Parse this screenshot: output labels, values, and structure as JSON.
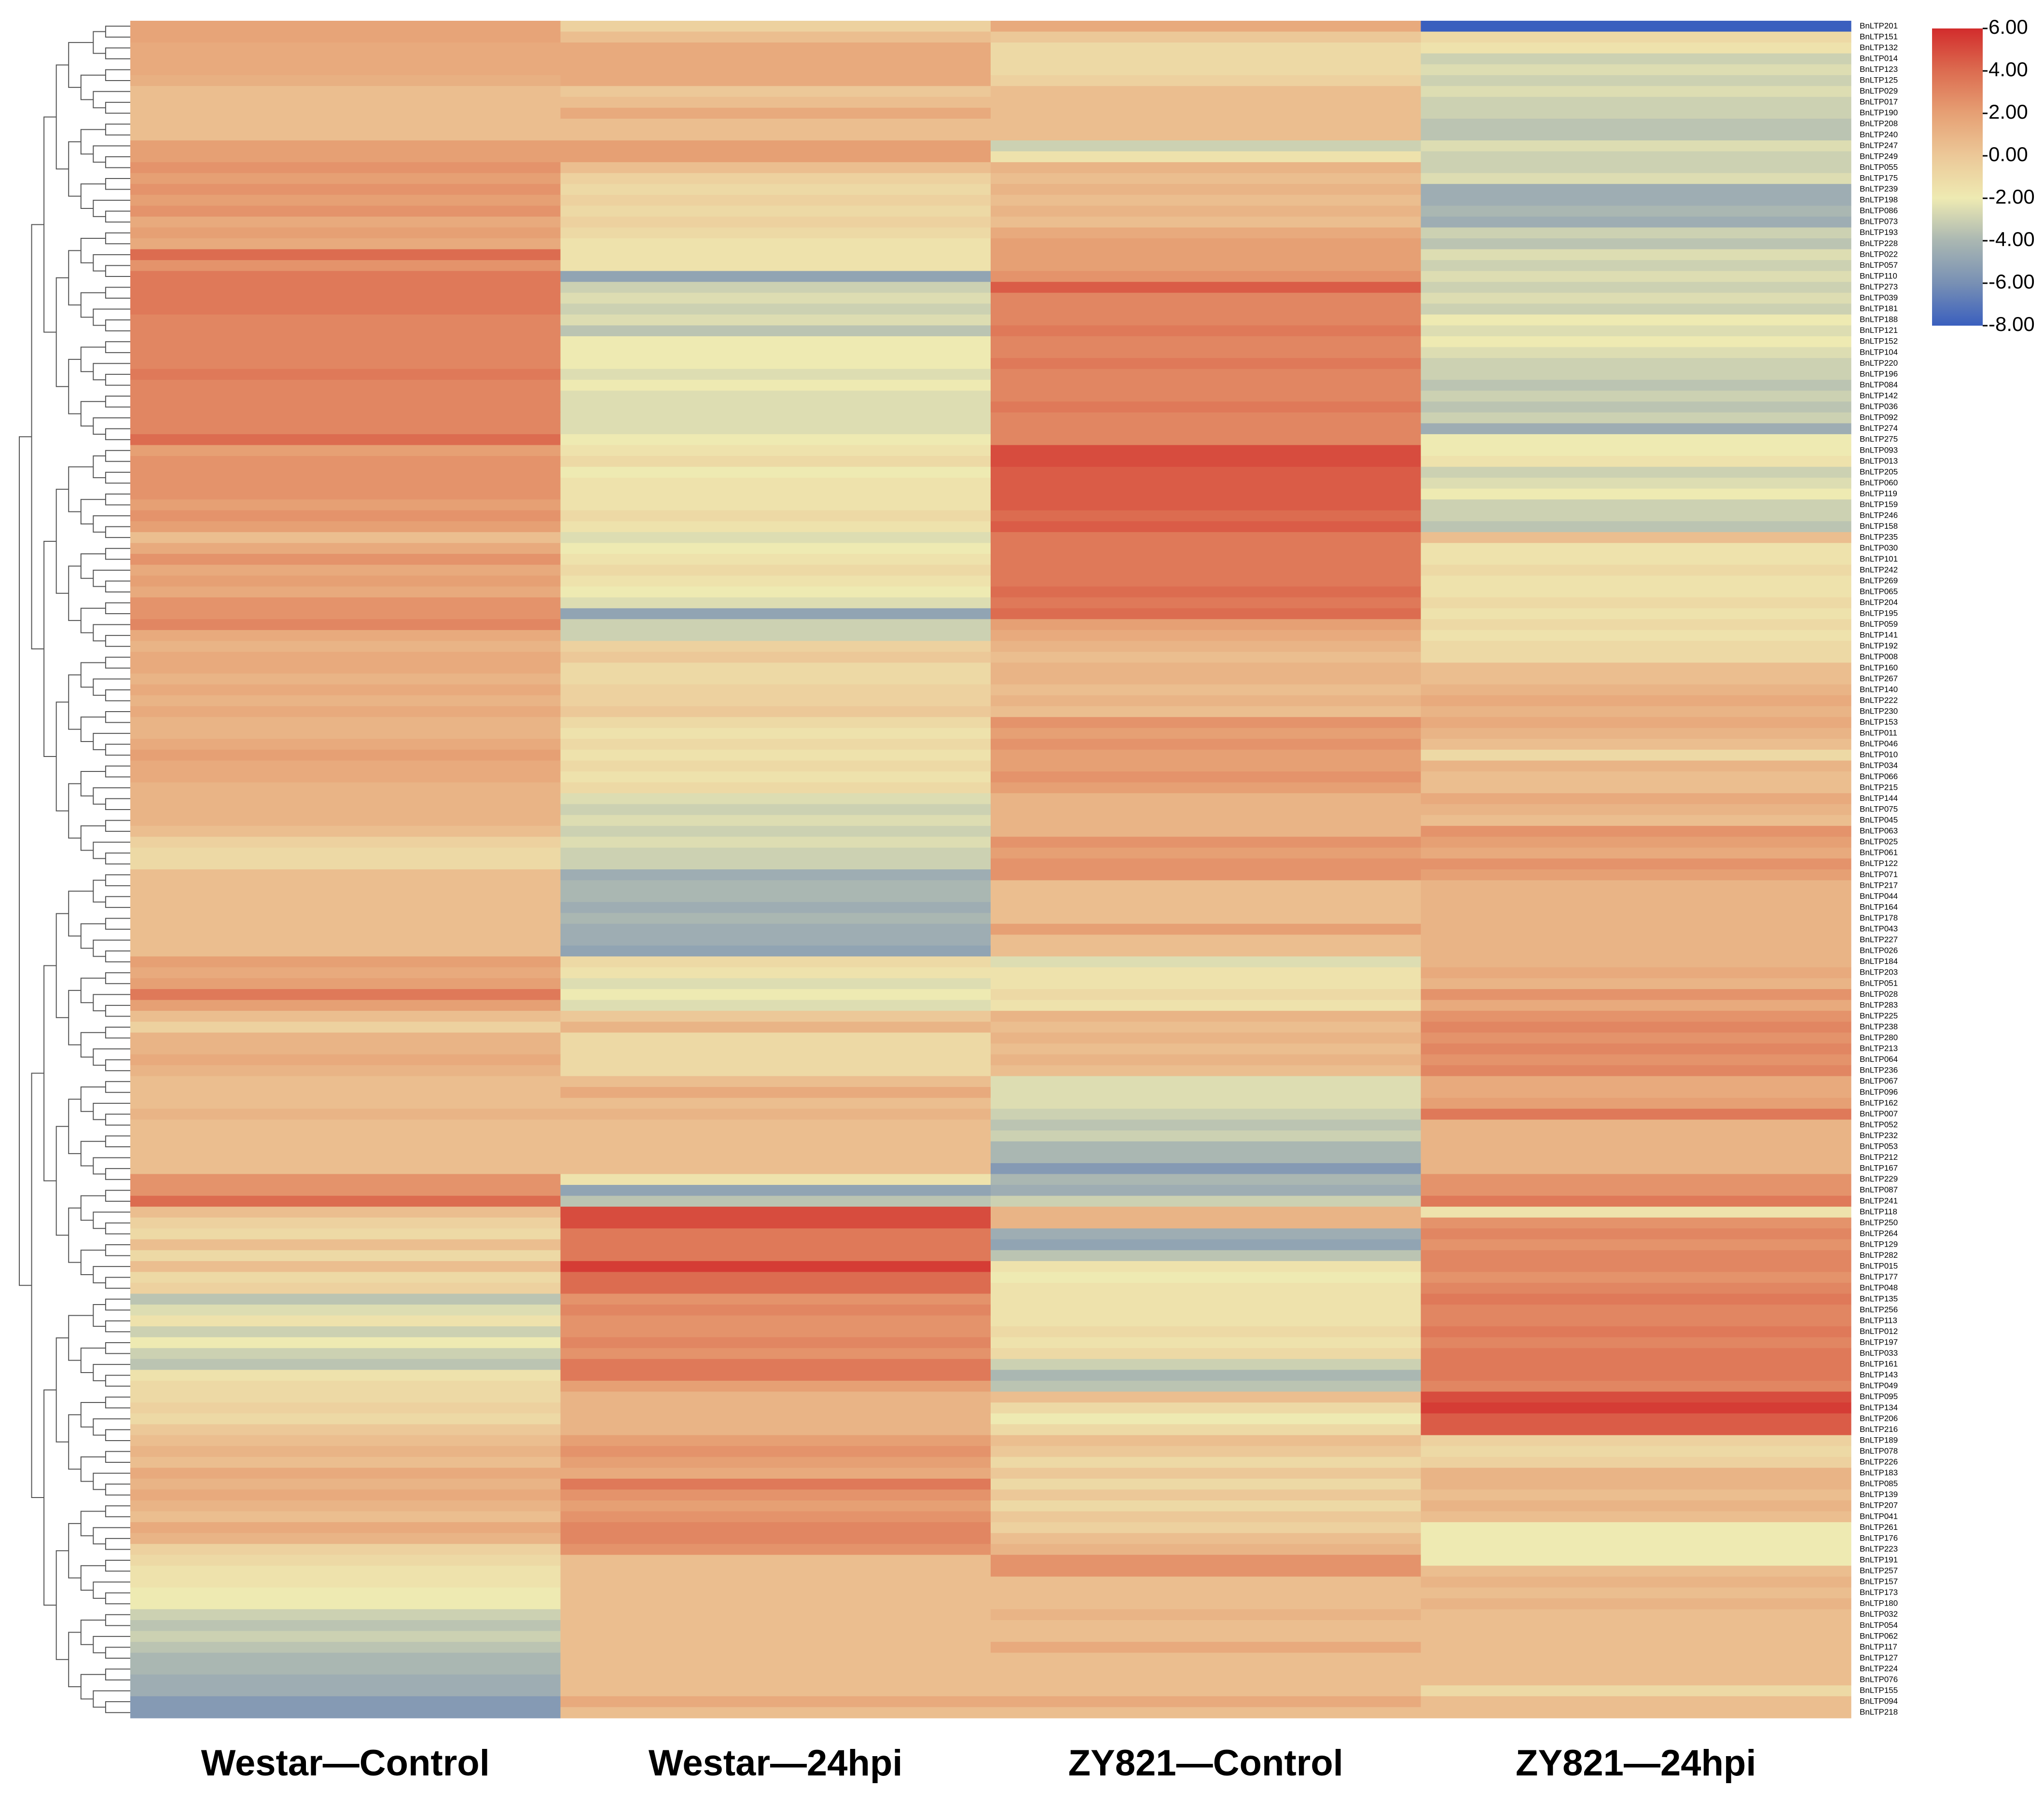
{
  "chart_data": {
    "type": "heatmap",
    "columns": [
      "Westar—Control",
      "Westar—24hpi",
      "ZY821—Control",
      "ZY821—24hpi"
    ],
    "rows": [
      "BnLTP201",
      "BnLTP151",
      "BnLTP132",
      "BnLTP014",
      "BnLTP123",
      "BnLTP125",
      "BnLTP029",
      "BnLTP017",
      "BnLTP190",
      "BnLTP208",
      "BnLTP240",
      "BnLTP247",
      "BnLTP249",
      "BnLTP055",
      "BnLTP175",
      "BnLTP239",
      "BnLTP198",
      "BnLTP086",
      "BnLTP073",
      "BnLTP193",
      "BnLTP228",
      "BnLTP022",
      "BnLTP057",
      "BnLTP110",
      "BnLTP273",
      "BnLTP039",
      "BnLTP181",
      "BnLTP188",
      "BnLTP121",
      "BnLTP152",
      "BnLTP104",
      "BnLTP220",
      "BnLTP196",
      "BnLTP084",
      "BnLTP142",
      "BnLTP036",
      "BnLTP092",
      "BnLTP274",
      "BnLTP275",
      "BnLTP093",
      "BnLTP013",
      "BnLTP205",
      "BnLTP060",
      "BnLTP119",
      "BnLTP159",
      "BnLTP246",
      "BnLTP158",
      "BnLTP235",
      "BnLTP030",
      "BnLTP101",
      "BnLTP242",
      "BnLTP269",
      "BnLTP065",
      "BnLTP204",
      "BnLTP195",
      "BnLTP059",
      "BnLTP141",
      "BnLTP192",
      "BnLTP008",
      "BnLTP160",
      "BnLTP267",
      "BnLTP140",
      "BnLTP222",
      "BnLTP230",
      "BnLTP153",
      "BnLTP011",
      "BnLTP046",
      "BnLTP010",
      "BnLTP034",
      "BnLTP066",
      "BnLTP215",
      "BnLTP144",
      "BnLTP075",
      "BnLTP045",
      "BnLTP063",
      "BnLTP025",
      "BnLTP061",
      "BnLTP122",
      "BnLTP071",
      "BnLTP217",
      "BnLTP044",
      "BnLTP164",
      "BnLTP178",
      "BnLTP043",
      "BnLTP227",
      "BnLTP026",
      "BnLTP184",
      "BnLTP203",
      "BnLTP051",
      "BnLTP028",
      "BnLTP283",
      "BnLTP225",
      "BnLTP238",
      "BnLTP280",
      "BnLTP213",
      "BnLTP064",
      "BnLTP236",
      "BnLTP067",
      "BnLTP096",
      "BnLTP162",
      "BnLTP007",
      "BnLTP052",
      "BnLTP232",
      "BnLTP053",
      "BnLTP212",
      "BnLTP167",
      "BnLTP229",
      "BnLTP087",
      "BnLTP241",
      "BnLTP118",
      "BnLTP250",
      "BnLTP264",
      "BnLTP129",
      "BnLTP282",
      "BnLTP015",
      "BnLTP177",
      "BnLTP048",
      "BnLTP135",
      "BnLTP256",
      "BnLTP113",
      "BnLTP012",
      "BnLTP197",
      "BnLTP033",
      "BnLTP161",
      "BnLTP143",
      "BnLTP049",
      "BnLTP095",
      "BnLTP134",
      "BnLTP206",
      "BnLTP216",
      "BnLTP189",
      "BnLTP078",
      "BnLTP226",
      "BnLTP183",
      "BnLTP085",
      "BnLTP139",
      "BnLTP207",
      "BnLTP041",
      "BnLTP261",
      "BnLTP176",
      "BnLTP223",
      "BnLTP191",
      "BnLTP257",
      "BnLTP157",
      "BnLTP173",
      "BnLTP180",
      "BnLTP032",
      "BnLTP054",
      "BnLTP062",
      "BnLTP117",
      "BnLTP127",
      "BnLTP224",
      "BnLTP076",
      "BnLTP155",
      "BnLTP094",
      "BnLTP218"
    ],
    "values": [
      [
        1.8,
        -0.5,
        1.5,
        -8
      ],
      [
        1.8,
        0.5,
        0,
        -1
      ],
      [
        1.5,
        1.5,
        -1,
        -1.5
      ],
      [
        1.5,
        1.5,
        -1,
        -3
      ],
      [
        1.5,
        1.5,
        -1,
        -2.5
      ],
      [
        1.2,
        1.5,
        -0.5,
        -3
      ],
      [
        0.5,
        0,
        0.5,
        -2.5
      ],
      [
        0.5,
        0.5,
        0.5,
        -3
      ],
      [
        0.5,
        1.5,
        0.5,
        -3
      ],
      [
        0.5,
        0.5,
        0.5,
        -3.5
      ],
      [
        0.5,
        0.5,
        0.5,
        -3.5
      ],
      [
        2,
        2,
        -3,
        -2.5
      ],
      [
        2,
        2,
        -1.5,
        -3
      ],
      [
        2.5,
        0.5,
        1,
        -3
      ],
      [
        2,
        -0.5,
        0.5,
        -2.5
      ],
      [
        2.5,
        -1,
        1,
        -4.5
      ],
      [
        2,
        -0.5,
        0.5,
        -4.5
      ],
      [
        2.5,
        -1,
        1,
        -4
      ],
      [
        1.5,
        -0.5,
        0.5,
        -4.5
      ],
      [
        2,
        -1,
        1.5,
        -3
      ],
      [
        1.5,
        -1.5,
        2,
        -3.5
      ],
      [
        4,
        -1.5,
        2,
        -2.5
      ],
      [
        2.5,
        -1.5,
        2,
        -3
      ],
      [
        3.5,
        -5,
        2.5,
        -2.5
      ],
      [
        3.5,
        -3,
        4.5,
        -3
      ],
      [
        3.5,
        -2.5,
        3,
        -2.5
      ],
      [
        3.5,
        -3,
        3,
        -3
      ],
      [
        3,
        -2.5,
        3,
        -2
      ],
      [
        3,
        -3.5,
        3.5,
        -2.5
      ],
      [
        3,
        -2,
        3,
        -2
      ],
      [
        3,
        -2,
        3,
        -2.5
      ],
      [
        3,
        -2,
        3.5,
        -3
      ],
      [
        3.5,
        -2.5,
        3,
        -3
      ],
      [
        3,
        -2,
        3,
        -3.5
      ],
      [
        3,
        -2.5,
        3,
        -3
      ],
      [
        3,
        -2.5,
        3.5,
        -3.5
      ],
      [
        3,
        -2.5,
        3,
        -3
      ],
      [
        3,
        -2.5,
        3,
        -4.5
      ],
      [
        4,
        -2,
        3,
        -2
      ],
      [
        2,
        -1.5,
        5,
        -2
      ],
      [
        2.5,
        -1,
        5,
        -1.5
      ],
      [
        2.5,
        -2,
        4.5,
        -3
      ],
      [
        2.5,
        -1.5,
        4.5,
        -2.5
      ],
      [
        2.5,
        -1.5,
        4.5,
        -2
      ],
      [
        2,
        -1.5,
        4.5,
        -3
      ],
      [
        2.5,
        -1,
        4,
        -3
      ],
      [
        2,
        -1.5,
        4.5,
        -3.5
      ],
      [
        0.5,
        -2.5,
        3.5,
        0.5
      ],
      [
        1.5,
        -2,
        3.5,
        -1.5
      ],
      [
        2.5,
        -1.5,
        3.5,
        -1.5
      ],
      [
        1.5,
        -1,
        3.5,
        -1
      ],
      [
        2,
        -1.5,
        3.5,
        -1.5
      ],
      [
        1.5,
        -2,
        4,
        -1.5
      ],
      [
        2.5,
        -2.5,
        3.5,
        -1
      ],
      [
        2.5,
        -5,
        4,
        -1.5
      ],
      [
        3,
        -3,
        2,
        -1
      ],
      [
        1.5,
        -3,
        1.5,
        -1.5
      ],
      [
        1,
        -0.5,
        1,
        -1
      ],
      [
        1.5,
        0,
        0.5,
        -1
      ],
      [
        1.5,
        -1,
        1,
        0.5
      ],
      [
        1,
        -1,
        1,
        0.5
      ],
      [
        1.5,
        -0.5,
        0.5,
        1
      ],
      [
        1,
        -0.5,
        1,
        1.5
      ],
      [
        1.5,
        0,
        0.5,
        1
      ],
      [
        1,
        -1,
        2.5,
        1.5
      ],
      [
        1,
        -1.5,
        2,
        1
      ],
      [
        1.5,
        -1,
        2.5,
        0.5
      ],
      [
        2,
        -1.5,
        2,
        -1
      ],
      [
        1.5,
        -1,
        2,
        1
      ],
      [
        1.5,
        -1.5,
        2.5,
        0.5
      ],
      [
        1,
        -1,
        2,
        0.5
      ],
      [
        1,
        -2.5,
        1,
        1.5
      ],
      [
        1,
        -3,
        1,
        1
      ],
      [
        1,
        -2.5,
        1,
        0.5
      ],
      [
        0.5,
        -3,
        1,
        2.5
      ],
      [
        -0.5,
        -2.5,
        2.5,
        2
      ],
      [
        -1,
        -3,
        2,
        1.5
      ],
      [
        -1,
        -3,
        2.5,
        2.5
      ],
      [
        0.5,
        -4.5,
        2.5,
        2
      ],
      [
        0.5,
        -4,
        0.5,
        1
      ],
      [
        0.5,
        -4,
        0.5,
        1
      ],
      [
        0.5,
        -4.5,
        0.5,
        1
      ],
      [
        0.5,
        -4,
        0.5,
        1
      ],
      [
        0.5,
        -4.5,
        2,
        1
      ],
      [
        0.5,
        -4.5,
        0.5,
        1
      ],
      [
        0.5,
        -5,
        0.5,
        1
      ],
      [
        2,
        -1,
        -2.5,
        1
      ],
      [
        1.5,
        -1.5,
        -1.5,
        1.5
      ],
      [
        2,
        -2.5,
        -1.5,
        1
      ],
      [
        3.5,
        -2,
        -1,
        2.5
      ],
      [
        2,
        -2.5,
        -1.5,
        1.5
      ],
      [
        0.5,
        0,
        1,
        2.5
      ],
      [
        -0.5,
        1,
        0.5,
        3
      ],
      [
        1,
        -1,
        1,
        2.5
      ],
      [
        1,
        -1,
        0.5,
        3
      ],
      [
        1.5,
        -1,
        1,
        2.5
      ],
      [
        1,
        -1,
        0.5,
        3
      ],
      [
        0.5,
        0.5,
        -2.5,
        1.5
      ],
      [
        0.5,
        1.5,
        -2.5,
        1.5
      ],
      [
        0.5,
        0.5,
        -2.5,
        2
      ],
      [
        1,
        1,
        -3,
        3.5
      ],
      [
        0.5,
        0.5,
        -3.5,
        1
      ],
      [
        0.5,
        0.5,
        -3,
        1
      ],
      [
        0.5,
        0.5,
        -4,
        1
      ],
      [
        0.5,
        0.5,
        -4,
        1
      ],
      [
        0.5,
        0.5,
        -5.5,
        1
      ],
      [
        2.5,
        -1.5,
        -4,
        2.5
      ],
      [
        2.5,
        -5,
        -4.5,
        2.5
      ],
      [
        4,
        -3.5,
        -3,
        3.5
      ],
      [
        0.5,
        5,
        1,
        -1.5
      ],
      [
        -0.5,
        5,
        1,
        2.5
      ],
      [
        -1,
        3.5,
        -4.5,
        3
      ],
      [
        0.5,
        3.5,
        -5,
        2.5
      ],
      [
        -1,
        3.5,
        -3.5,
        3
      ],
      [
        0.5,
        5.5,
        -1.5,
        3
      ],
      [
        -1,
        4,
        -2,
        2.5
      ],
      [
        -0.5,
        4,
        -1.5,
        3
      ],
      [
        -3.5,
        2.5,
        -1.5,
        3.5
      ],
      [
        -2.5,
        3,
        -1.5,
        3
      ],
      [
        -1.5,
        2.5,
        -1.5,
        3
      ],
      [
        -3,
        2.5,
        -1,
        3.5
      ],
      [
        -2,
        3,
        -1.5,
        3
      ],
      [
        -3,
        2.5,
        -1,
        3.5
      ],
      [
        -3.5,
        3.5,
        -3,
        3.5
      ],
      [
        -1.5,
        3.5,
        -4,
        3.5
      ],
      [
        -1,
        2,
        -3.5,
        3
      ],
      [
        -1,
        1,
        0.5,
        5
      ],
      [
        -0.5,
        1,
        -1,
        5.5
      ],
      [
        -1,
        1,
        -2,
        4.5
      ],
      [
        0,
        1,
        -1,
        4.5
      ],
      [
        0.5,
        2,
        0.5,
        -0.5
      ],
      [
        1,
        2.5,
        0,
        -1
      ],
      [
        0.5,
        2,
        -1,
        -0.5
      ],
      [
        1.5,
        1.5,
        0,
        1
      ],
      [
        1,
        3.5,
        -1,
        1
      ],
      [
        1.5,
        2.5,
        0,
        0.5
      ],
      [
        1,
        2,
        -1,
        1
      ],
      [
        0.5,
        2.5,
        0,
        0.5
      ],
      [
        1.5,
        3,
        -0.5,
        -2
      ],
      [
        1,
        3,
        0.5,
        -2
      ],
      [
        -0.5,
        2.5,
        1,
        -2
      ],
      [
        -1,
        0.5,
        2.5,
        -2
      ],
      [
        -1.5,
        0.5,
        2.5,
        0.5
      ],
      [
        -1.5,
        0.5,
        0.5,
        1
      ],
      [
        -2,
        0.5,
        0.5,
        0.5
      ],
      [
        -2,
        0.5,
        0.5,
        1
      ],
      [
        -3,
        0.5,
        1,
        0.5
      ],
      [
        -3.5,
        0.5,
        0.5,
        0.5
      ],
      [
        -3,
        0.5,
        0.5,
        0.5
      ],
      [
        -3.5,
        0.5,
        1.5,
        0.5
      ],
      [
        -4,
        0.5,
        0.5,
        0.5
      ],
      [
        -4,
        0.5,
        0.5,
        0.5
      ],
      [
        -4.5,
        0.5,
        0.5,
        0.5
      ],
      [
        -4.5,
        0.5,
        0.5,
        -1
      ],
      [
        -5.5,
        1.5,
        1.5,
        0.5
      ],
      [
        -5.5,
        0.5,
        0.5,
        0.5
      ]
    ],
    "clim": [
      -8,
      6
    ],
    "colors": [
      "#3a5fbe",
      "#7890b4",
      "#aab7b2",
      "#eeeab2",
      "#ecc898",
      "#e6a074",
      "#dc6c50",
      "#d22c2c"
    ],
    "colorbar_ticks": [
      {
        "value": 6,
        "label": "6.00"
      },
      {
        "value": 4,
        "label": "4.00"
      },
      {
        "value": 2,
        "label": "2.00"
      },
      {
        "value": 0,
        "label": "0.00"
      },
      {
        "value": -2,
        "label": "-2.00"
      },
      {
        "value": -4,
        "label": "-4.00"
      },
      {
        "value": -6,
        "label": "-6.00"
      },
      {
        "value": -8,
        "label": "-8.00"
      }
    ]
  }
}
